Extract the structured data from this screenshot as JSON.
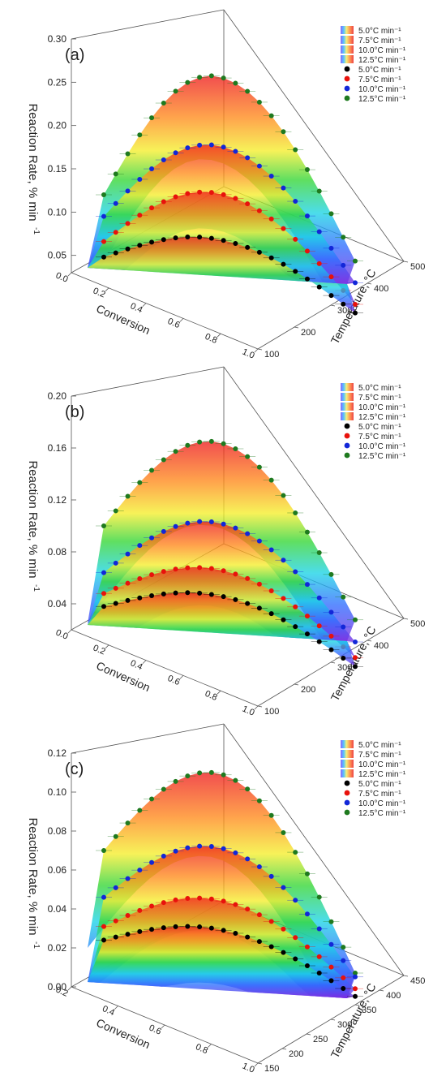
{
  "chart_data": [
    {
      "type": "surface3d",
      "panel_label": "(a)",
      "zlabel": "Reaction Rate, % min",
      "zlabel_sup": "-1",
      "xlabel": "Conversion",
      "ylabel": "Temperature, °C",
      "zticks": [
        "0.05",
        "0.10",
        "0.15",
        "0.20",
        "0.25",
        "0.30"
      ],
      "zlim": [
        0.03,
        0.3
      ],
      "xticks": [
        "0.0",
        "0.2",
        "0.4",
        "0.6",
        "0.8",
        "1.0"
      ],
      "yticks": [
        "100",
        "200",
        "300",
        "400",
        "500"
      ],
      "legend_surface": [
        "5.0°C min⁻¹",
        "7.5°C min⁻¹",
        "10.0°C min⁻¹",
        "12.5°C min⁻¹"
      ],
      "legend_points": [
        "5.0°C min⁻¹",
        "7.5°C min⁻¹",
        "10.0°C min⁻¹",
        "12.5°C min⁻¹"
      ],
      "series": [
        {
          "name": "5.0°C min⁻¹",
          "color": "#000000",
          "rate_min": 0.048,
          "rate_peak": 0.092,
          "rate_end": 0.035
        },
        {
          "name": "7.5°C min⁻¹",
          "color": "#e8120c",
          "rate_min": 0.066,
          "rate_peak": 0.145,
          "rate_end": 0.045
        },
        {
          "name": "10.0°C min⁻¹",
          "color": "#1227d8",
          "rate_min": 0.095,
          "rate_peak": 0.2,
          "rate_end": 0.07
        },
        {
          "name": "12.5°C min⁻¹",
          "color": "#1f7a1f",
          "rate_min": 0.12,
          "rate_peak": 0.28,
          "rate_end": 0.095
        }
      ]
    },
    {
      "type": "surface3d",
      "panel_label": "(b)",
      "zlabel": "Reaction Rate, % min",
      "zlabel_sup": "-1",
      "xlabel": "Conversion",
      "ylabel": "Temperature, °C",
      "zticks": [
        "0.04",
        "0.08",
        "0.12",
        "0.16",
        "0.20"
      ],
      "zlim": [
        0.02,
        0.2
      ],
      "xticks": [
        "0.0",
        "0.2",
        "0.4",
        "0.6",
        "0.8",
        "1.0"
      ],
      "yticks": [
        "100",
        "200",
        "300",
        "400",
        "500"
      ],
      "legend_surface": [
        "5.0°C min⁻¹",
        "7.5°C min⁻¹",
        "10.0°C min⁻¹",
        "12.5°C min⁻¹"
      ],
      "legend_points": [
        "5.0°C min⁻¹",
        "7.5°C min⁻¹",
        "10.0°C min⁻¹",
        "12.5°C min⁻¹"
      ],
      "series": [
        {
          "name": "5.0°C min⁻¹",
          "color": "#000000",
          "rate_min": 0.038,
          "rate_peak": 0.062,
          "rate_end": 0.026
        },
        {
          "name": "7.5°C min⁻¹",
          "color": "#e8120c",
          "rate_min": 0.048,
          "rate_peak": 0.082,
          "rate_end": 0.033
        },
        {
          "name": "10.0°C min⁻¹",
          "color": "#1227d8",
          "rate_min": 0.064,
          "rate_peak": 0.118,
          "rate_end": 0.045
        },
        {
          "name": "12.5°C min⁻¹",
          "color": "#1f7a1f",
          "rate_min": 0.1,
          "rate_peak": 0.18,
          "rate_end": 0.062
        }
      ]
    },
    {
      "type": "surface3d",
      "panel_label": "(c)",
      "zlabel": "Reaction Rate, % min",
      "zlabel_sup": "-1",
      "xlabel": "Conversion",
      "ylabel": "Temperature, °C",
      "zticks": [
        "0.00",
        "0.02",
        "0.04",
        "0.06",
        "0.08",
        "0.10",
        "0.12"
      ],
      "zlim": [
        0.0,
        0.12
      ],
      "xticks": [
        "0.2",
        "0.4",
        "0.6",
        "0.8",
        "1.0"
      ],
      "yticks": [
        "150",
        "200",
        "250",
        "300",
        "350",
        "400",
        "450"
      ],
      "legend_surface": [
        "5.0°C min⁻¹",
        "7.5°C min⁻¹",
        "10.0°C min⁻¹",
        "12.5°C min⁻¹"
      ],
      "legend_points": [
        "5.0°C min⁻¹",
        "7.5°C min⁻¹",
        "10.0°C min⁻¹",
        "12.5°C min⁻¹"
      ],
      "series": [
        {
          "name": "5.0°C min⁻¹",
          "color": "#000000",
          "rate_min": 0.024,
          "rate_peak": 0.04,
          "rate_end": 0.018
        },
        {
          "name": "7.5°C min⁻¹",
          "color": "#e8120c",
          "rate_min": 0.031,
          "rate_peak": 0.055,
          "rate_end": 0.022
        },
        {
          "name": "10.0°C min⁻¹",
          "color": "#1227d8",
          "rate_min": 0.046,
          "rate_peak": 0.082,
          "rate_end": 0.028
        },
        {
          "name": "12.5°C min⁻¹",
          "color": "#1f7a1f",
          "rate_min": 0.07,
          "rate_peak": 0.12,
          "rate_end": 0.03
        }
      ]
    }
  ]
}
